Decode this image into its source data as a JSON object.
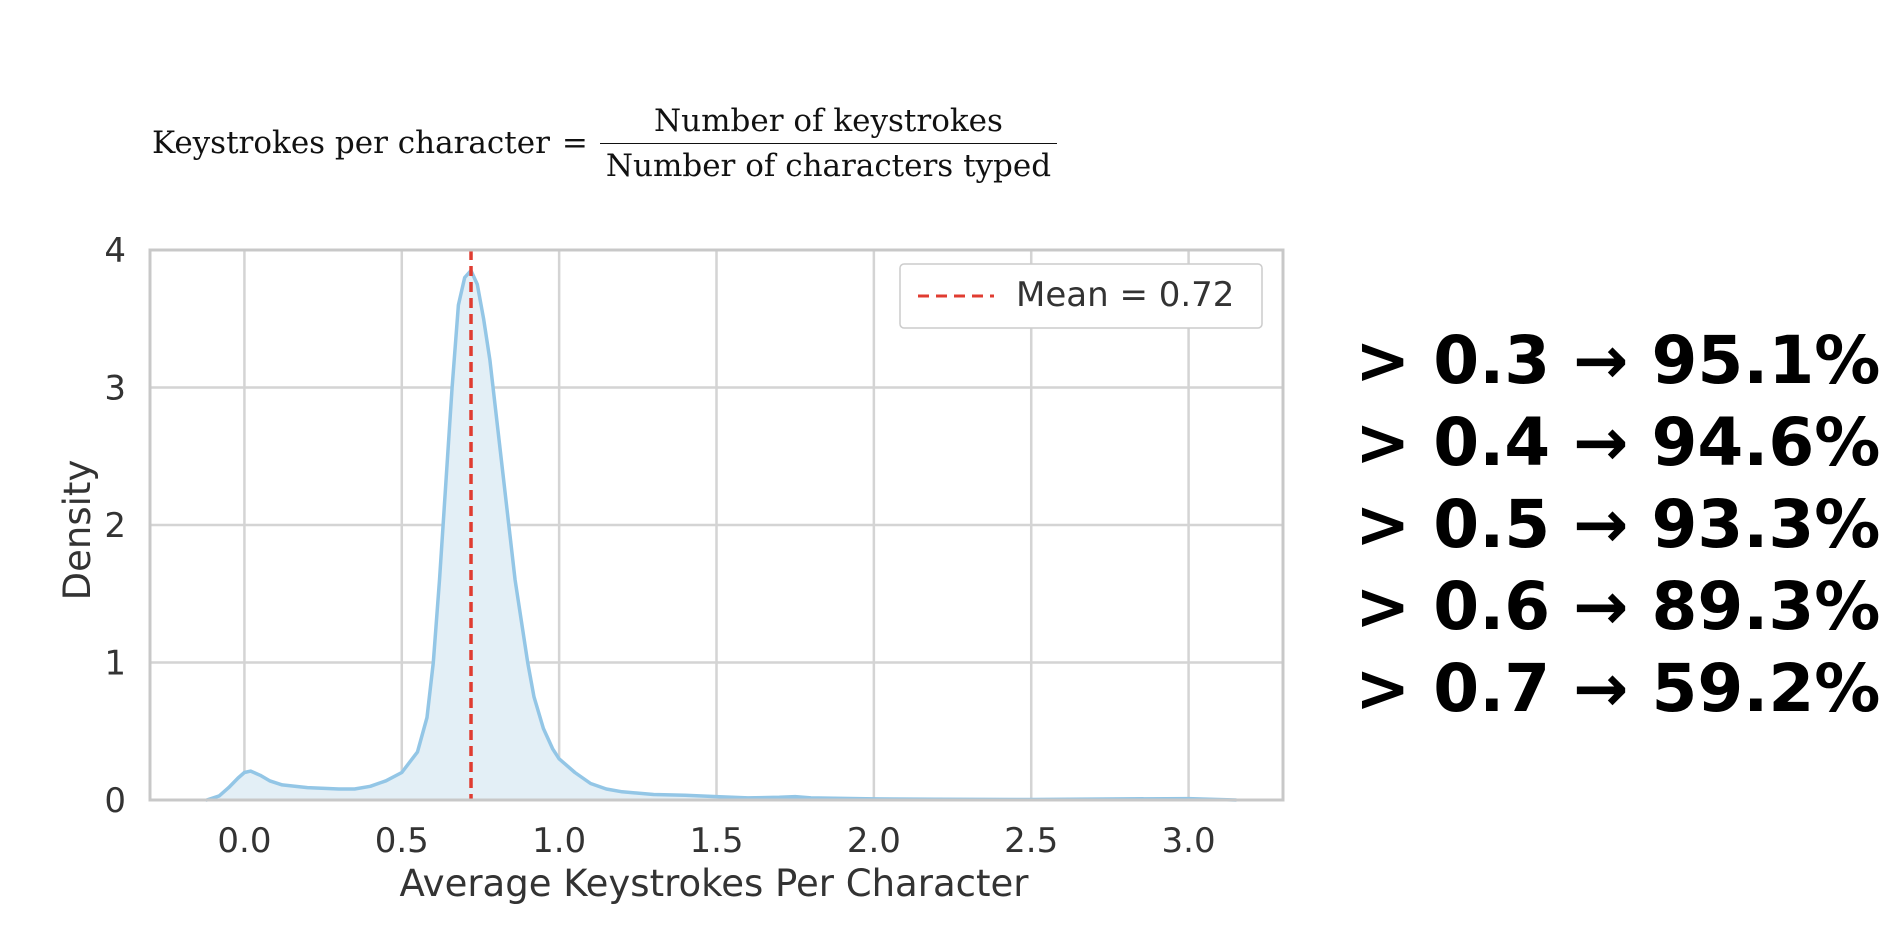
{
  "formula": {
    "lhs": "Keystrokes per character",
    "equals": "=",
    "numerator": "Number of keystrokes",
    "denominator": "Number of characters typed"
  },
  "stats": [
    "> 0.3 → 95.1%",
    "> 0.4 → 94.6%",
    "> 0.5 → 93.3%",
    "> 0.6 → 89.3%",
    "> 0.7 → 59.2%"
  ],
  "chart_data": {
    "type": "area",
    "xlabel": "Average Keystrokes Per Character",
    "ylabel": "Density",
    "xlim": [
      -0.3,
      3.3
    ],
    "ylim": [
      0,
      4
    ],
    "xticks": [
      0.0,
      0.5,
      1.0,
      1.5,
      2.0,
      2.5,
      3.0
    ],
    "xtick_labels": [
      "0.0",
      "0.5",
      "1.0",
      "1.5",
      "2.0",
      "2.5",
      "3.0"
    ],
    "yticks": [
      0,
      1,
      2,
      3,
      4
    ],
    "ytick_labels": [
      "0",
      "1",
      "2",
      "3",
      "4"
    ],
    "grid": true,
    "legend_position": "top-right",
    "series": [
      {
        "kind": "kde",
        "color": "#93c6e6",
        "fill": "#e3eff6",
        "x": [
          -0.12,
          -0.08,
          -0.05,
          -0.02,
          0.0,
          0.02,
          0.05,
          0.08,
          0.12,
          0.2,
          0.3,
          0.35,
          0.4,
          0.45,
          0.5,
          0.55,
          0.58,
          0.6,
          0.62,
          0.64,
          0.66,
          0.68,
          0.7,
          0.72,
          0.74,
          0.76,
          0.78,
          0.8,
          0.82,
          0.84,
          0.86,
          0.88,
          0.9,
          0.92,
          0.95,
          0.98,
          1.0,
          1.05,
          1.1,
          1.15,
          1.2,
          1.3,
          1.4,
          1.5,
          1.6,
          1.7,
          1.75,
          1.8,
          2.0,
          2.2,
          2.5,
          2.8,
          3.0,
          3.15
        ],
        "y": [
          0.0,
          0.03,
          0.09,
          0.16,
          0.2,
          0.21,
          0.18,
          0.14,
          0.11,
          0.09,
          0.08,
          0.08,
          0.1,
          0.14,
          0.2,
          0.35,
          0.6,
          1.0,
          1.6,
          2.3,
          3.0,
          3.6,
          3.8,
          3.85,
          3.75,
          3.5,
          3.2,
          2.8,
          2.4,
          2.0,
          1.6,
          1.3,
          1.0,
          0.75,
          0.52,
          0.37,
          0.3,
          0.2,
          0.12,
          0.08,
          0.06,
          0.04,
          0.035,
          0.025,
          0.015,
          0.02,
          0.025,
          0.015,
          0.008,
          0.005,
          0.004,
          0.008,
          0.01,
          0.0
        ]
      }
    ],
    "mean_line": {
      "x": 0.72,
      "label": "Mean = 0.72",
      "color": "#e03c31",
      "style": "dashed"
    }
  }
}
